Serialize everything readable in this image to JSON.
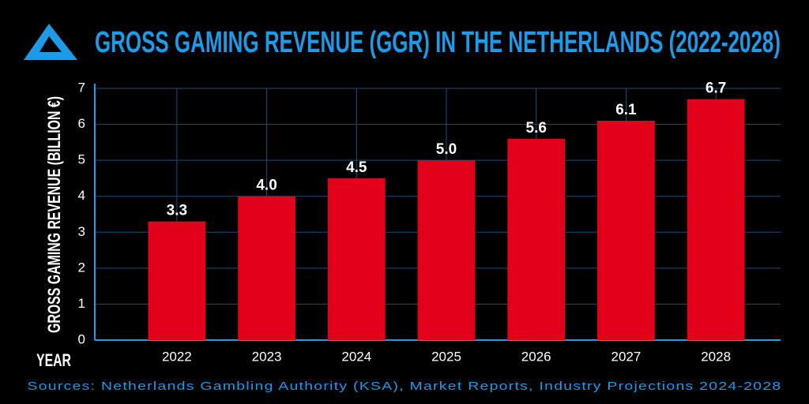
{
  "chart_data": {
    "type": "bar",
    "title": "GROSS GAMING REVENUE (GGR) IN THE NETHERLANDS (2022-2028)",
    "y_label": "GROSS GAMING REVENUE (BILLION €)",
    "x_label": "YEAR",
    "source": "Sources: Netherlands Gambling Authority (KSA), Market Reports, Industry Projections 2024-2028",
    "categories": [
      "2022",
      "2023",
      "2024",
      "2025",
      "2026",
      "2027",
      "2028"
    ],
    "values": [
      3.3,
      4.0,
      4.5,
      5.0,
      5.6,
      6.1,
      6.7
    ],
    "value_labels": [
      "3.3",
      "4.0",
      "4.5",
      "5.0",
      "5.6",
      "6.1",
      "6.7"
    ],
    "color": "#e3001b",
    "ylim": [
      0,
      7
    ],
    "yticks": [
      0,
      1,
      2,
      3,
      4,
      5,
      6,
      7
    ],
    "grid": true
  }
}
